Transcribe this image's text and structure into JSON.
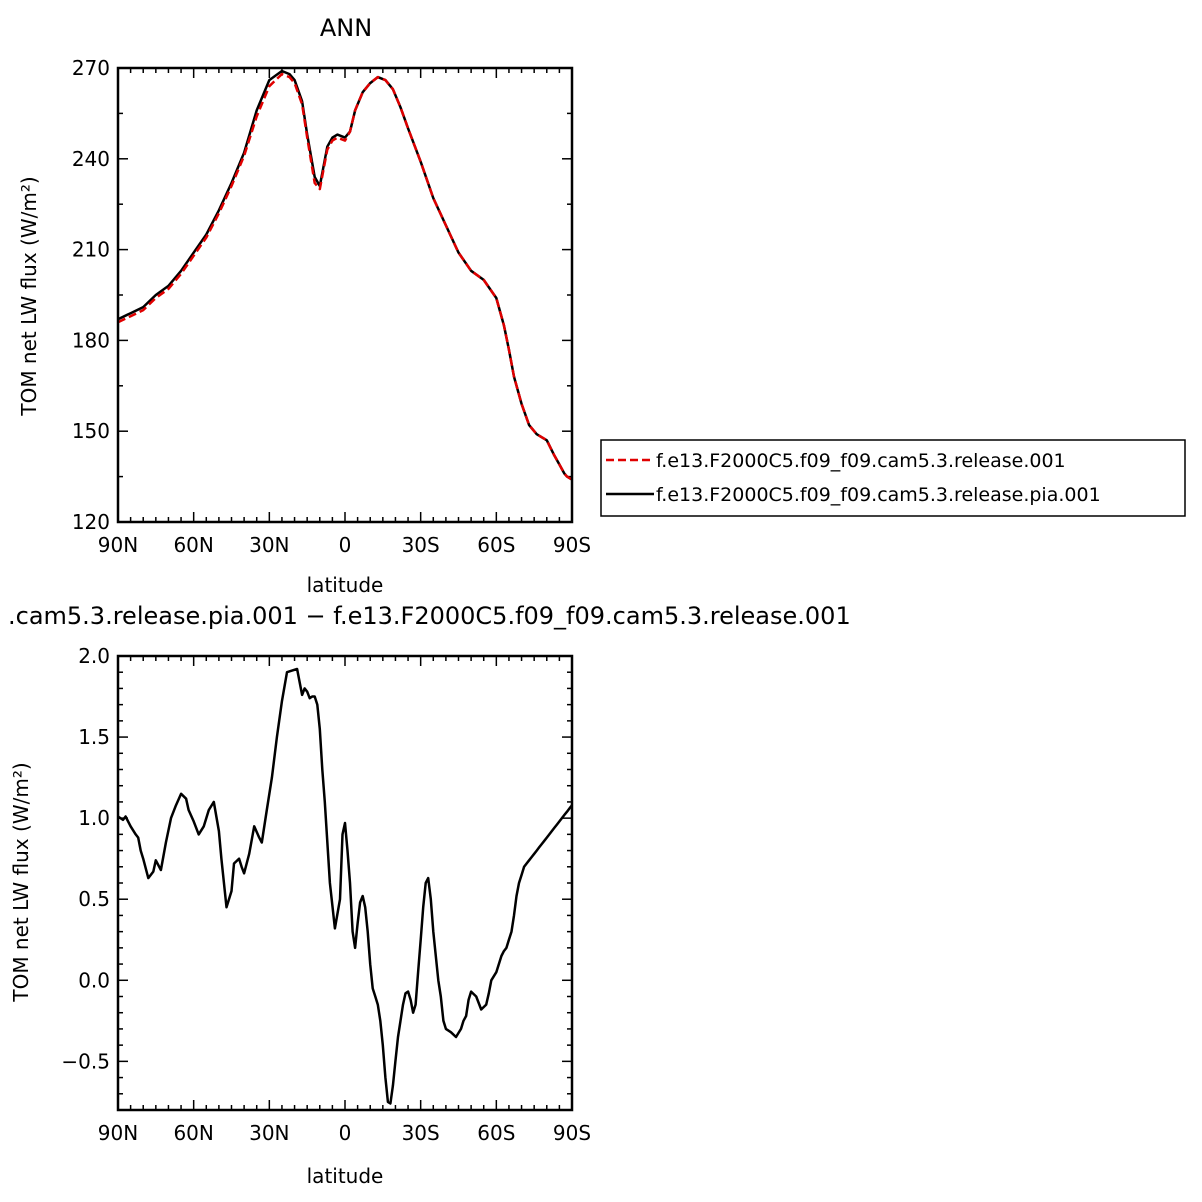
{
  "chart_data": [
    {
      "type": "line",
      "title": "ANN",
      "xlabel": "latitude",
      "ylabel": "TOM net LW flux (W/m²)",
      "xlim": [
        -90,
        90
      ],
      "ylim": [
        120,
        270
      ],
      "x_ticks": [
        -90,
        -60,
        -30,
        0,
        30,
        60,
        90
      ],
      "x_tick_labels": [
        "90N",
        "60N",
        "30N",
        "0",
        "30S",
        "60S",
        "90S"
      ],
      "y_ticks": [
        120,
        150,
        180,
        210,
        240,
        270
      ],
      "y_tick_labels": [
        "120",
        "150",
        "180",
        "210",
        "240",
        "270"
      ],
      "legend_position": "right",
      "series": [
        {
          "name": "f.e13.F2000C5.f09_f09.cam5.3.release.001",
          "color": "#e00000",
          "style": "dashed",
          "x": [
            -90,
            -85,
            -80,
            -75,
            -70,
            -65,
            -60,
            -55,
            -50,
            -45,
            -40,
            -35,
            -30,
            -25,
            -22,
            -20,
            -17,
            -15,
            -12,
            -10,
            -7,
            -5,
            -3,
            0,
            2,
            4,
            7,
            10,
            13,
            16,
            19,
            22,
            25,
            30,
            35,
            40,
            45,
            50,
            55,
            60,
            63,
            65,
            67,
            70,
            73,
            76,
            80,
            83,
            85,
            87,
            88,
            90
          ],
          "y": [
            186,
            188,
            190,
            194,
            197,
            202,
            208,
            214,
            222,
            231,
            241,
            254,
            264,
            268,
            267,
            265,
            258,
            247,
            232,
            230,
            243,
            246,
            247,
            246,
            249,
            256,
            262,
            265,
            267,
            266,
            263,
            257,
            250,
            239,
            227,
            218,
            209,
            203,
            200,
            194,
            185,
            177,
            168,
            159,
            152,
            149,
            147,
            142,
            139,
            136,
            135,
            134
          ]
        },
        {
          "name": "f.e13.F2000C5.f09_f09.cam5.3.release.pia.001",
          "color": "#000000",
          "style": "solid",
          "x": [
            -90,
            -85,
            -80,
            -75,
            -70,
            -65,
            -60,
            -55,
            -50,
            -45,
            -40,
            -35,
            -30,
            -25,
            -22,
            -20,
            -17,
            -15,
            -12,
            -10,
            -7,
            -5,
            -3,
            0,
            2,
            4,
            7,
            10,
            13,
            16,
            19,
            22,
            25,
            30,
            35,
            40,
            45,
            50,
            55,
            60,
            63,
            65,
            67,
            70,
            73,
            76,
            80,
            83,
            85,
            87,
            88,
            90
          ],
          "y": [
            187,
            189,
            191,
            195,
            198,
            203,
            209,
            215,
            223,
            232,
            242,
            256,
            266,
            269,
            268,
            266,
            259,
            248,
            234,
            231,
            244,
            247,
            248,
            247,
            249,
            256,
            262,
            265,
            267,
            266,
            263,
            257,
            250,
            239,
            227,
            218,
            209,
            203,
            200,
            194,
            185,
            177,
            168,
            159,
            152,
            149,
            147,
            142,
            139,
            136,
            135,
            134
          ]
        }
      ]
    },
    {
      "type": "line",
      "title": ".cam5.3.release.pia.001 − f.e13.F2000C5.f09_f09.cam5.3.release.001",
      "xlabel": "latitude",
      "ylabel": "TOM net LW flux (W/m²)",
      "xlim": [
        -90,
        90
      ],
      "ylim": [
        -0.8,
        2.0
      ],
      "x_ticks": [
        -90,
        -60,
        -30,
        0,
        30,
        60,
        90
      ],
      "x_tick_labels": [
        "90N",
        "60N",
        "30N",
        "0",
        "30S",
        "60S",
        "90S"
      ],
      "y_ticks": [
        -0.5,
        0.0,
        0.5,
        1.0,
        1.5,
        2.0
      ],
      "y_tick_labels": [
        "−0.5",
        "0.0",
        "0.5",
        "1.0",
        "1.5",
        "2.0"
      ],
      "series": [
        {
          "name": "",
          "color": "#000000",
          "style": "solid",
          "x": [
            -90,
            -88,
            -87,
            -85,
            -83,
            -82,
            -81,
            -80,
            -78,
            -76,
            -75,
            -73,
            -71,
            -69,
            -67,
            -65,
            -63,
            -62,
            -60,
            -58,
            -56,
            -54,
            -52,
            -50,
            -49,
            -47,
            -45,
            -44,
            -42,
            -41,
            -40,
            -38,
            -36,
            -34,
            -33,
            -31,
            -29,
            -27,
            -25,
            -23,
            -21,
            -19,
            -17,
            -16,
            -15,
            -14,
            -13,
            -12,
            -11,
            -10,
            -9,
            -8,
            -6,
            -4,
            -2,
            -1,
            0,
            1,
            2,
            3,
            4,
            5,
            6,
            7,
            8,
            9,
            10,
            11,
            12,
            13,
            14,
            15,
            16,
            17,
            18,
            19,
            20,
            21,
            22,
            23,
            24,
            25,
            26,
            27,
            28,
            29,
            30,
            31,
            32,
            33,
            34,
            35,
            36,
            37,
            38,
            39,
            40,
            42,
            44,
            46,
            47,
            48,
            49,
            50,
            52,
            54,
            56,
            57,
            58,
            60,
            62,
            63,
            64,
            65,
            66,
            67,
            68,
            69,
            70,
            71,
            72,
            73,
            74,
            75,
            76,
            77,
            78,
            79,
            80,
            81,
            82,
            83,
            84,
            85,
            86,
            87,
            88,
            89,
            90
          ],
          "y": [
            1.01,
            0.99,
            1.01,
            0.95,
            0.9,
            0.88,
            0.8,
            0.75,
            0.63,
            0.67,
            0.74,
            0.68,
            0.85,
            1.0,
            1.08,
            1.15,
            1.12,
            1.05,
            0.98,
            0.9,
            0.95,
            1.05,
            1.1,
            0.92,
            0.75,
            0.45,
            0.55,
            0.72,
            0.75,
            0.7,
            0.66,
            0.78,
            0.95,
            0.88,
            0.85,
            1.05,
            1.25,
            1.5,
            1.72,
            1.9,
            1.91,
            1.92,
            1.76,
            1.8,
            1.78,
            1.74,
            1.75,
            1.75,
            1.7,
            1.55,
            1.3,
            1.1,
            0.6,
            0.32,
            0.5,
            0.9,
            0.97,
            0.8,
            0.6,
            0.3,
            0.2,
            0.35,
            0.48,
            0.52,
            0.45,
            0.3,
            0.1,
            -0.05,
            -0.1,
            -0.15,
            -0.25,
            -0.4,
            -0.6,
            -0.75,
            -0.76,
            -0.65,
            -0.5,
            -0.35,
            -0.25,
            -0.15,
            -0.08,
            -0.07,
            -0.12,
            -0.2,
            -0.15,
            0.05,
            0.25,
            0.45,
            0.6,
            0.63,
            0.5,
            0.3,
            0.15,
            0.0,
            -0.1,
            -0.25,
            -0.3,
            -0.32,
            -0.35,
            -0.3,
            -0.25,
            -0.22,
            -0.12,
            -0.07,
            -0.1,
            -0.18,
            -0.15,
            -0.08,
            0.0,
            0.05,
            0.15,
            0.18,
            0.2,
            0.25,
            0.3,
            0.4,
            0.52,
            0.6,
            0.65,
            0.7,
            0.72,
            0.74,
            0.76,
            0.78,
            0.8,
            0.82,
            0.84,
            0.86,
            0.88,
            0.9,
            0.92,
            0.94,
            0.96,
            0.98,
            1.0,
            1.02,
            1.04,
            1.06,
            1.08
          ]
        }
      ]
    }
  ]
}
